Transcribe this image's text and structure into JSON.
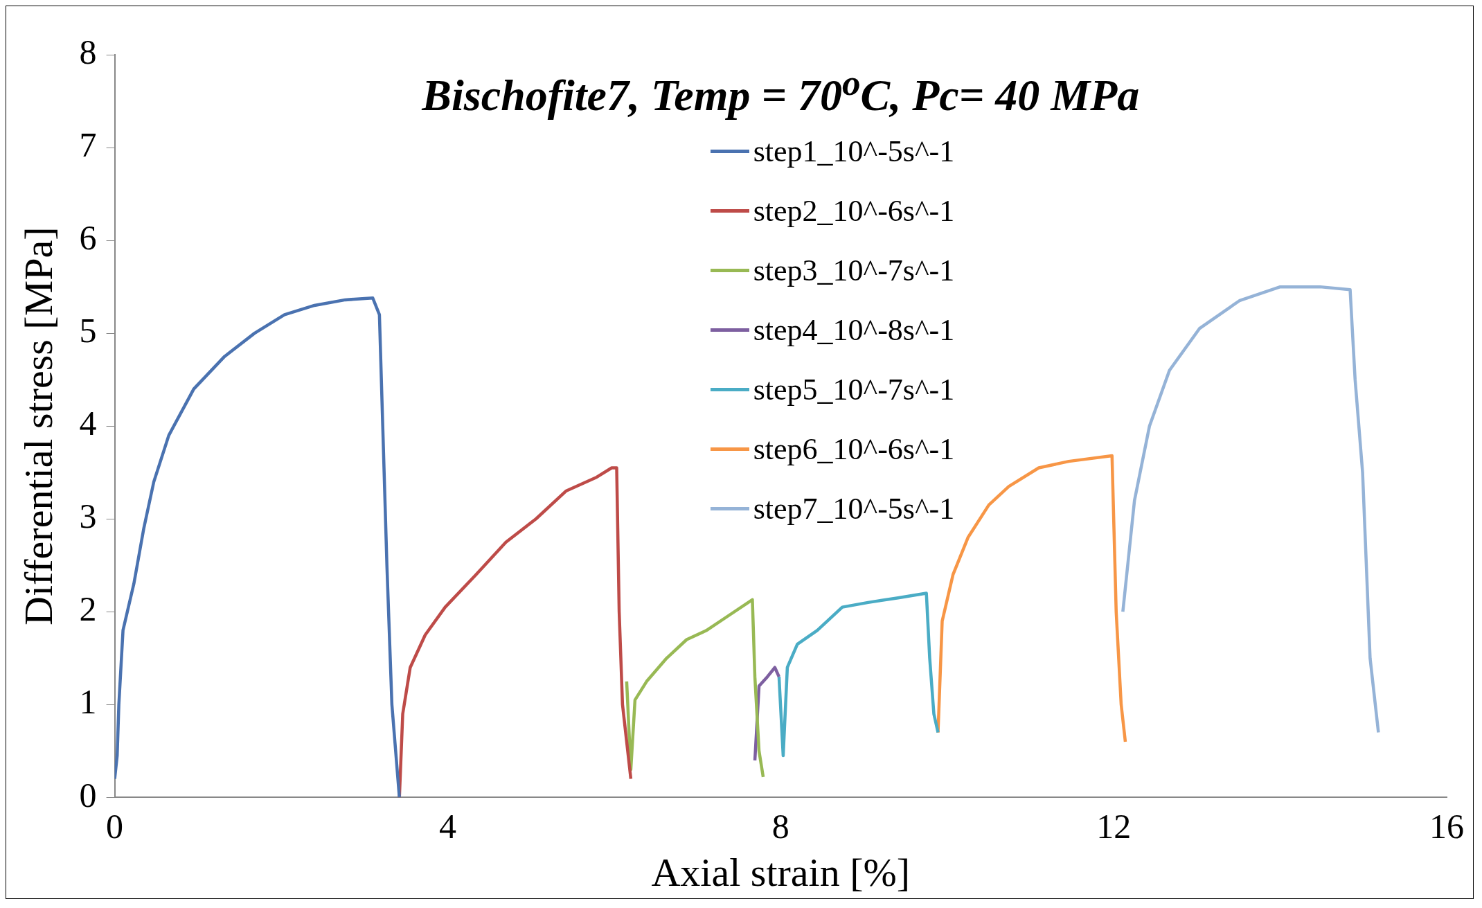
{
  "chart_data": {
    "type": "line",
    "title": "Bischofite7, Temp = 70$^{o}$C, Pc= 40 MPa",
    "xlabel": "Axial strain [%]",
    "ylabel": "Differential stress [MPa]",
    "xlim": [
      0,
      16
    ],
    "xticks": [
      0,
      4,
      8,
      12,
      16
    ],
    "ylim": [
      0,
      8
    ],
    "yticks": [
      0,
      1,
      2,
      3,
      4,
      5,
      6,
      7,
      8
    ],
    "grid": false,
    "legend": "top",
    "marker": "none",
    "line_style": "solid",
    "series": [
      {
        "name": "step1_10^-5s^-1",
        "color": "#4a72b0",
        "x": [
          0,
          0.03,
          0.05,
          0.1,
          0.23,
          0.29,
          0.35,
          0.47,
          0.65,
          0.95,
          1.32,
          1.68,
          2.04,
          2.4,
          2.77,
          3.1,
          3.18,
          3.22,
          3.27,
          3.33,
          3.42
        ],
        "values": [
          0.2,
          0.45,
          1.0,
          1.8,
          2.3,
          2.6,
          2.9,
          3.4,
          3.9,
          4.4,
          4.75,
          5.0,
          5.2,
          5.3,
          5.36,
          5.38,
          5.2,
          4.0,
          2.5,
          1.0,
          0.0
        ]
      },
      {
        "name": "step2_10^-6s^-1",
        "color": "#be4b48",
        "x": [
          3.42,
          3.46,
          3.55,
          3.73,
          3.97,
          4.34,
          4.7,
          5.06,
          5.42,
          5.79,
          5.97,
          6.03,
          6.06,
          6.1,
          6.2
        ],
        "values": [
          0.0,
          0.9,
          1.4,
          1.75,
          2.05,
          2.4,
          2.75,
          3.0,
          3.3,
          3.45,
          3.55,
          3.55,
          2.0,
          1.0,
          0.2
        ]
      },
      {
        "name": "step3_10^-7s^-1",
        "color": "#98b954",
        "x": [
          6.15,
          6.2,
          6.25,
          6.39,
          6.63,
          6.87,
          7.11,
          7.36,
          7.66,
          7.69,
          7.74,
          7.79
        ],
        "values": [
          1.25,
          0.3,
          1.05,
          1.25,
          1.5,
          1.7,
          1.8,
          1.95,
          2.13,
          1.3,
          0.5,
          0.22
        ]
      },
      {
        "name": "step4_10^-8s^-1",
        "color": "#7d5fa0",
        "x": [
          7.69,
          7.74,
          7.84,
          7.93,
          7.98
        ],
        "values": [
          0.4,
          1.2,
          1.3,
          1.4,
          1.3
        ]
      },
      {
        "name": "step5_10^-7s^-1",
        "color": "#4aacc5",
        "x": [
          7.98,
          8.03,
          8.08,
          8.2,
          8.44,
          8.74,
          9.05,
          9.41,
          9.75,
          9.79,
          9.84,
          9.89
        ],
        "values": [
          1.3,
          0.45,
          1.4,
          1.65,
          1.8,
          2.05,
          2.1,
          2.15,
          2.2,
          1.5,
          0.9,
          0.7
        ]
      },
      {
        "name": "step6_10^-6s^-1",
        "color": "#f79646",
        "x": [
          9.89,
          9.94,
          10.07,
          10.25,
          10.5,
          10.74,
          11.1,
          11.46,
          11.98,
          12.03,
          12.09,
          12.14
        ],
        "values": [
          0.7,
          1.9,
          2.4,
          2.8,
          3.15,
          3.35,
          3.55,
          3.62,
          3.68,
          2.0,
          1.0,
          0.6
        ]
      },
      {
        "name": "step7_10^-5s^-1",
        "color": "#95b3d7",
        "x": [
          12.11,
          12.25,
          12.43,
          12.67,
          13.03,
          13.51,
          14.0,
          14.48,
          14.84,
          14.9,
          14.99,
          15.08,
          15.18
        ],
        "values": [
          2.0,
          3.2,
          4.0,
          4.6,
          5.05,
          5.35,
          5.5,
          5.5,
          5.47,
          4.5,
          3.5,
          1.5,
          0.7
        ]
      }
    ]
  }
}
